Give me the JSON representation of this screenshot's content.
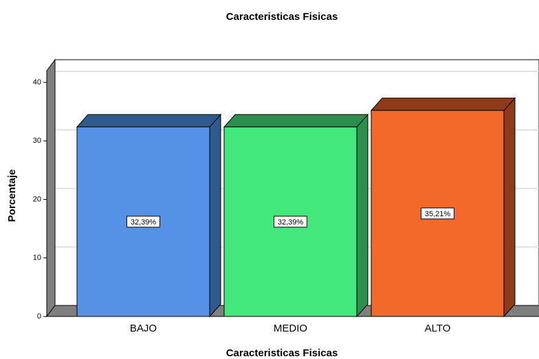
{
  "chart_data": {
    "type": "bar3d",
    "title": "Caracteristicas Fisicas",
    "x_label": "Caracteristicas Fisicas",
    "y_label": "Porcentaje",
    "categories": [
      "BAJO",
      "MEDIO",
      "ALTO"
    ],
    "values": [
      32.39,
      32.39,
      35.21
    ],
    "value_labels": [
      "32,39%",
      "32,39%",
      "35,21%"
    ],
    "colors": [
      "#5592e6",
      "#43e87d",
      "#f2692a"
    ],
    "side_colors": [
      "#2f5a8f",
      "#2b8f4e",
      "#8f3a18"
    ],
    "ylim": [
      0,
      42
    ],
    "yticks": [
      0,
      10,
      20,
      30,
      40
    ],
    "grid": true
  }
}
